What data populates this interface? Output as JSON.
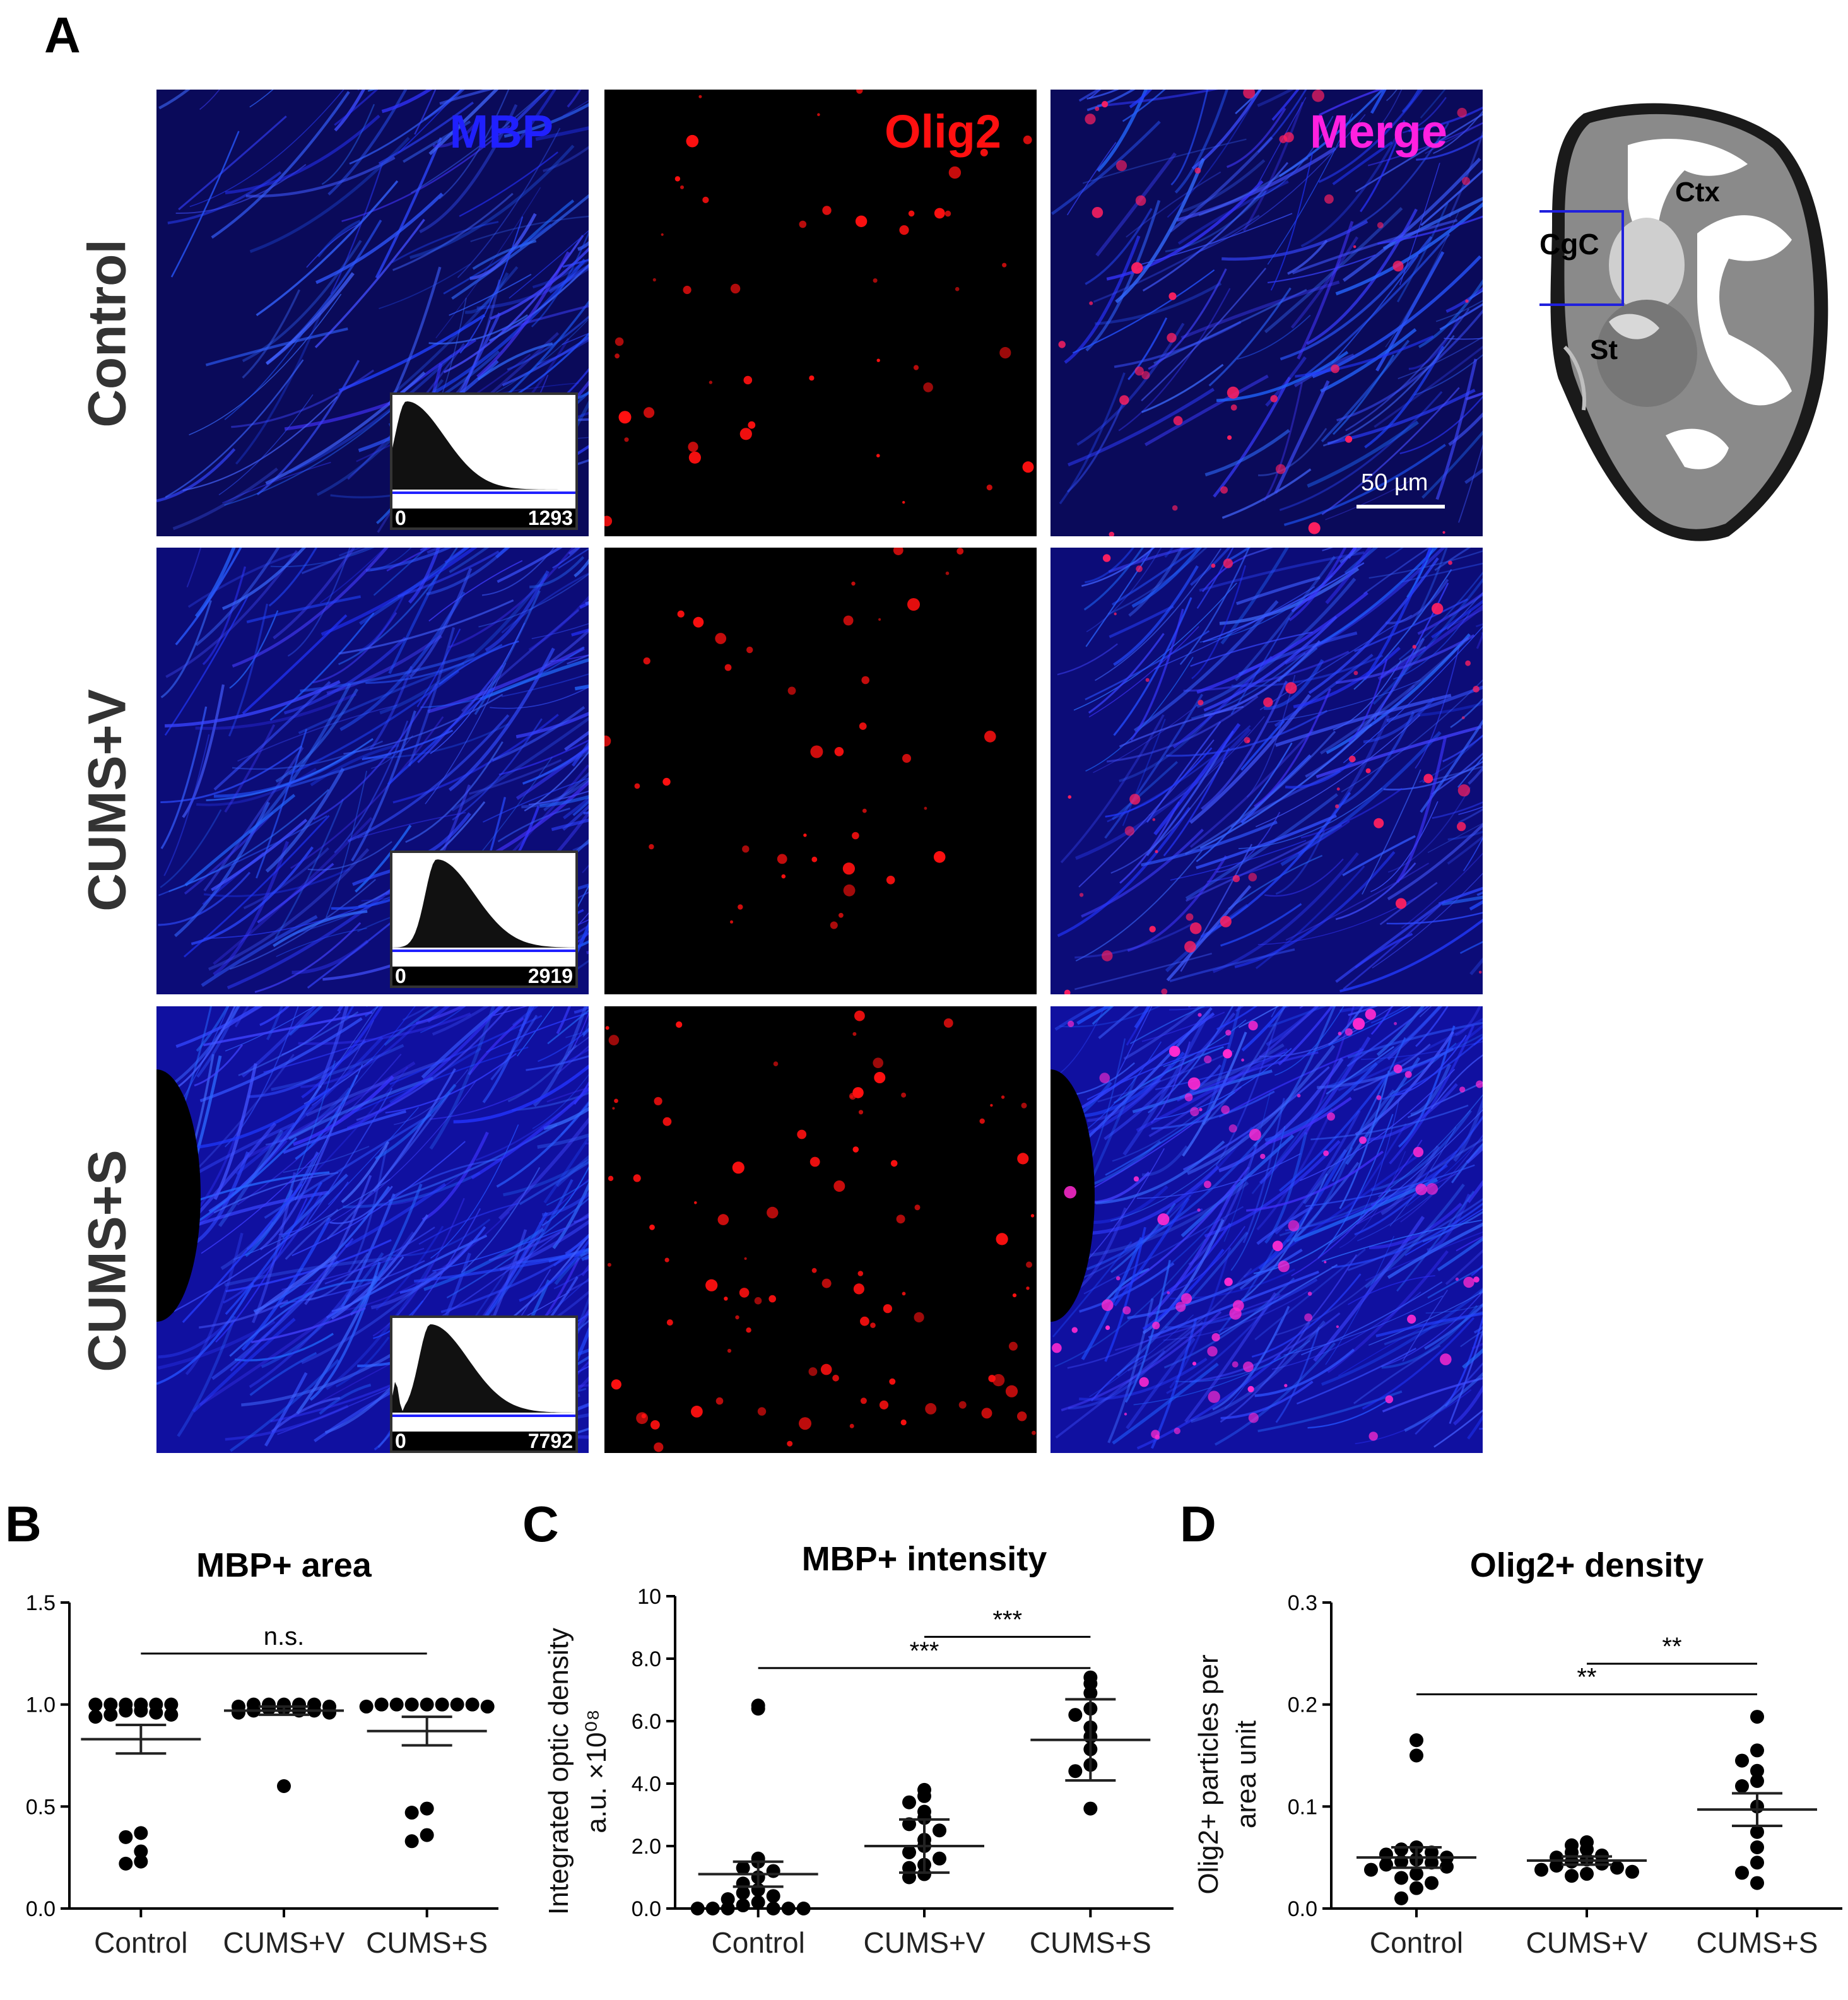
{
  "panels": {
    "A": "A",
    "B": "B",
    "C": "C",
    "D": "D"
  },
  "rows": [
    "Control",
    "CUMS+V",
    "CUMS+S"
  ],
  "channels": {
    "mbp": {
      "label": "MBP",
      "color": "#2020ff"
    },
    "olig2": {
      "label": "Olig2",
      "color": "#ff1010"
    },
    "merge": {
      "label": "Merge",
      "color": "#ff20e0"
    }
  },
  "histograms": [
    {
      "min": "0",
      "max": "1293"
    },
    {
      "min": "0",
      "max": "2919"
    },
    {
      "min": "0",
      "max": "7792"
    }
  ],
  "scale_bar": "50 µm",
  "brain_labels": {
    "ctx": "Ctx",
    "cgc": "CgC",
    "st": "St"
  },
  "chart_data": [
    {
      "panel": "B",
      "type": "scatter",
      "title": "MBP+ area",
      "ylabel": "",
      "ylim": [
        0,
        1.5
      ],
      "yticks": [
        "0.0",
        "0.5",
        "1.0",
        "1.5"
      ],
      "categories": [
        "Control",
        "CUMS+V",
        "CUMS+S"
      ],
      "points": [
        [
          1.0,
          1.0,
          1.0,
          1.0,
          1.0,
          1.0,
          0.97,
          0.97,
          0.96,
          0.95,
          0.95,
          0.94,
          0.37,
          0.35,
          0.28,
          0.23,
          0.22
        ],
        [
          1.0,
          1.0,
          1.0,
          1.0,
          1.0,
          0.99,
          0.99,
          0.98,
          0.98,
          0.97,
          0.97,
          0.97,
          0.96,
          0.96,
          0.6
        ],
        [
          1.0,
          1.0,
          1.0,
          1.0,
          1.0,
          1.0,
          1.0,
          0.99,
          0.99,
          0.49,
          0.47,
          0.36,
          0.33
        ]
      ],
      "means": [
        0.83,
        0.97,
        0.87
      ],
      "errors": [
        0.07,
        0.02,
        0.07
      ],
      "significance": [
        {
          "from": 0,
          "to": 2,
          "label": "n.s.",
          "y": 1.25
        }
      ]
    },
    {
      "panel": "C",
      "type": "scatter",
      "title": "MBP+ intensity",
      "ylabel": "Integrated optic density\na.u. ×10⁰⁸",
      "ylim": [
        0,
        10
      ],
      "yticks": [
        "0.0",
        "2.0",
        "4.0",
        "6.0",
        "8.0",
        "10"
      ],
      "categories": [
        "Control",
        "CUMS+V",
        "CUMS+S"
      ],
      "points": [
        [
          6.5,
          6.4,
          1.6,
          1.5,
          1.3,
          1.2,
          1.0,
          0.8,
          0.6,
          0.5,
          0.4,
          0.3,
          0.2,
          0.1,
          0.0,
          0.0,
          0.0,
          0.0,
          0.0,
          0.0
        ],
        [
          3.8,
          3.6,
          3.4,
          3.1,
          2.9,
          2.7,
          2.5,
          2.2,
          2.0,
          1.8,
          1.6,
          1.4,
          1.3,
          1.1,
          1.0
        ],
        [
          7.4,
          7.2,
          6.9,
          6.4,
          6.2,
          5.8,
          5.5,
          5.1,
          4.6,
          4.4,
          3.2
        ]
      ],
      "means": [
        1.1,
        2.0,
        5.4
      ],
      "errors": [
        0.4,
        0.85,
        1.3
      ],
      "significance": [
        {
          "from": 1,
          "to": 2,
          "label": "***",
          "y": 8.7
        },
        {
          "from": 0,
          "to": 2,
          "label": "***",
          "y": 7.7
        }
      ]
    },
    {
      "panel": "D",
      "type": "scatter",
      "title": "Olig2+ density",
      "ylabel": "Olig2+ particles per\narea unit",
      "ylim": [
        0,
        0.3
      ],
      "yticks": [
        "0.0",
        "0.1",
        "0.2",
        "0.3"
      ],
      "categories": [
        "Control",
        "CUMS+V",
        "CUMS+S"
      ],
      "points": [
        [
          0.165,
          0.15,
          0.06,
          0.058,
          0.055,
          0.053,
          0.05,
          0.048,
          0.046,
          0.045,
          0.043,
          0.041,
          0.038,
          0.034,
          0.03,
          0.025,
          0.02,
          0.01
        ],
        [
          0.065,
          0.062,
          0.058,
          0.055,
          0.052,
          0.05,
          0.048,
          0.046,
          0.044,
          0.042,
          0.04,
          0.038,
          0.036,
          0.034,
          0.032
        ],
        [
          0.188,
          0.155,
          0.145,
          0.135,
          0.125,
          0.12,
          0.1,
          0.075,
          0.06,
          0.045,
          0.035,
          0.025
        ]
      ],
      "means": [
        0.05,
        0.047,
        0.097
      ],
      "errors": [
        0.01,
        0.004,
        0.016
      ],
      "significance": [
        {
          "from": 1,
          "to": 2,
          "label": "**",
          "y": 0.24
        },
        {
          "from": 0,
          "to": 2,
          "label": "**",
          "y": 0.21
        }
      ]
    }
  ]
}
